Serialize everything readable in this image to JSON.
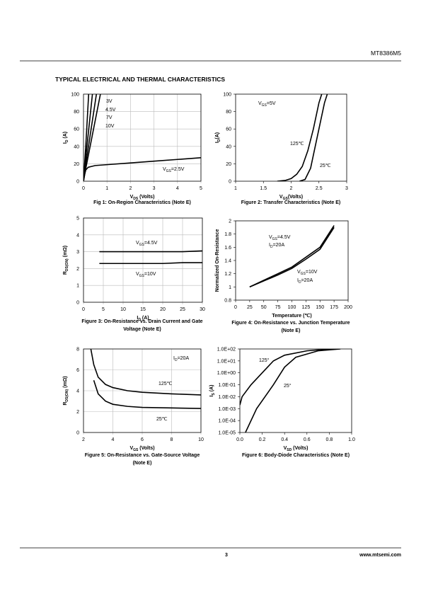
{
  "header": {
    "part_number": "MT8386M5",
    "section_title": "TYPICAL ELECTRICAL AND THERMAL CHARACTERISTICS"
  },
  "footer": {
    "page": "3",
    "website": "www.mtsemi.com"
  },
  "chart_data": [
    {
      "type": "line",
      "caption": [
        "Fig 1: On-Region Characteristics (Note E)"
      ],
      "xlabel": [
        "V",
        "DS",
        " (Volts)"
      ],
      "ylabel": [
        "I",
        "D",
        " (A)"
      ],
      "xlim": [
        0,
        5
      ],
      "xticks": [
        0,
        1,
        2,
        3,
        4,
        5
      ],
      "ylim": [
        0,
        100
      ],
      "yticks": [
        0,
        20,
        40,
        60,
        80,
        100
      ],
      "grid": true,
      "series": [
        {
          "color": "#000000",
          "x": [
            0,
            0.1,
            0.22
          ],
          "values": [
            0,
            42,
            100
          ]
        },
        {
          "color": "#000000",
          "x": [
            0,
            0.1,
            0.38
          ],
          "values": [
            0,
            28,
            100
          ]
        },
        {
          "color": "#000000",
          "x": [
            0,
            0.1,
            0.55
          ],
          "values": [
            0,
            20,
            100
          ]
        },
        {
          "color": "#000000",
          "x": [
            0,
            0.1,
            0.72
          ],
          "values": [
            0,
            15,
            100
          ]
        },
        {
          "color": "#000000",
          "x": [
            0,
            0.05,
            0.1,
            0.2,
            0.5,
            1,
            2,
            3,
            4,
            5
          ],
          "values": [
            0,
            8,
            13,
            16,
            18,
            19,
            21,
            23,
            25,
            27
          ]
        }
      ],
      "annotations": [
        [
          "3V"
        ],
        [
          "4.5V"
        ],
        [
          "7V"
        ],
        [
          "10V"
        ],
        [
          "V",
          "GS",
          "=2.5V"
        ]
      ]
    },
    {
      "type": "line",
      "caption": [
        "Figure 2: Transfer Characteristics (Note E)"
      ],
      "xlabel": [
        "V",
        "GS",
        "(Volts)"
      ],
      "ylabel": [
        "I",
        "D",
        "(A)"
      ],
      "xlim": [
        1,
        3
      ],
      "xticks": [
        1,
        1.5,
        2,
        2.5,
        3
      ],
      "ylim": [
        0,
        100
      ],
      "yticks": [
        0,
        20,
        40,
        60,
        80,
        100
      ],
      "grid": false,
      "series": [
        {
          "color": "#000000",
          "x": [
            1.75,
            1.9,
            2.0,
            2.1,
            2.2,
            2.3,
            2.4,
            2.5,
            2.55
          ],
          "values": [
            0,
            1,
            3,
            8,
            17,
            35,
            60,
            90,
            100
          ]
        },
        {
          "color": "#000000",
          "x": [
            2.15,
            2.25,
            2.35,
            2.4,
            2.5,
            2.6,
            2.65
          ],
          "values": [
            0,
            2,
            15,
            30,
            60,
            90,
            100
          ]
        }
      ],
      "annotations": [
        [
          "V",
          "GS",
          "=5V"
        ],
        [
          "125℃"
        ],
        [
          "25℃"
        ]
      ]
    },
    {
      "type": "line",
      "caption": [
        "Figure 3: On-Resistance vs. Drain Current and Gate",
        "Voltage (Note E)"
      ],
      "xlabel": [
        "I",
        "D",
        " (A)"
      ],
      "ylabel": [
        "R",
        "DS(ON)",
        " (mΩ)"
      ],
      "xlim": [
        0,
        30
      ],
      "xticks": [
        0,
        5,
        10,
        15,
        20,
        25,
        30
      ],
      "ylim": [
        0,
        5
      ],
      "yticks": [
        0,
        1,
        2,
        3,
        4,
        5
      ],
      "grid": true,
      "series": [
        {
          "color": "#000000",
          "x": [
            4,
            10,
            15,
            20,
            25,
            30
          ],
          "values": [
            3.0,
            3.0,
            3.0,
            3.0,
            3.0,
            3.05
          ]
        },
        {
          "color": "#000000",
          "x": [
            4,
            10,
            15,
            20,
            25,
            30
          ],
          "values": [
            2.3,
            2.3,
            2.3,
            2.3,
            2.35,
            2.35
          ]
        }
      ],
      "annotations": [
        [
          "V",
          "GS",
          "=4.5V"
        ],
        [
          "V",
          "GS",
          "=10V"
        ]
      ]
    },
    {
      "type": "line",
      "caption": [
        "Figure 4: On-Resistance vs. Junction Temperature",
        "(Note E)"
      ],
      "xlabel": [
        "Temperature (℃)"
      ],
      "ylabel": [
        "Normalized On-Resistance"
      ],
      "xlim": [
        0,
        200
      ],
      "xticks": [
        0,
        25,
        50,
        75,
        100,
        125,
        150,
        175,
        200
      ],
      "ylim": [
        0.8,
        2
      ],
      "yticks": [
        0.8,
        1,
        1.2,
        1.4,
        1.6,
        1.8,
        2
      ],
      "grid": false,
      "series": [
        {
          "color": "#000000",
          "x": [
            25,
            50,
            75,
            100,
            125,
            150,
            175
          ],
          "values": [
            1,
            1.1,
            1.2,
            1.3,
            1.45,
            1.6,
            1.93
          ]
        },
        {
          "color": "#000000",
          "x": [
            25,
            50,
            75,
            100,
            125,
            150,
            175
          ],
          "values": [
            1,
            1.09,
            1.18,
            1.28,
            1.42,
            1.57,
            1.9
          ]
        }
      ],
      "annotations": [
        [
          "V",
          "GS",
          "=4.5V"
        ],
        [
          "I",
          "D",
          "=20A"
        ],
        [
          "V",
          "GS",
          "=10V"
        ],
        [
          "I",
          "D",
          "=20A"
        ]
      ]
    },
    {
      "type": "line",
      "caption": [
        "Figure 5: On-Resistance vs. Gate-Source Voltage",
        "(Note E)"
      ],
      "xlabel": [
        "V",
        "GS",
        " (Volts)"
      ],
      "ylabel": [
        "R",
        "DS(ON)",
        " (mΩ)"
      ],
      "xlim": [
        2,
        10
      ],
      "xticks": [
        2,
        4,
        6,
        8,
        10
      ],
      "ylim": [
        0,
        8
      ],
      "yticks": [
        0,
        2,
        4,
        6,
        8
      ],
      "grid": true,
      "series": [
        {
          "color": "#000000",
          "x": [
            2.5,
            2.7,
            3,
            3.5,
            4,
            5,
            6,
            8,
            10
          ],
          "values": [
            8,
            6.5,
            5.3,
            4.6,
            4.3,
            4.0,
            3.85,
            3.7,
            3.6
          ]
        },
        {
          "color": "#000000",
          "x": [
            2.7,
            3,
            3.5,
            4,
            5,
            6,
            8,
            10
          ],
          "values": [
            5,
            3.7,
            3,
            2.7,
            2.5,
            2.4,
            2.35,
            2.3
          ]
        }
      ],
      "annotations": [
        [
          "I",
          "D",
          "=20A"
        ],
        [
          "125℃"
        ],
        [
          "25℃"
        ]
      ]
    },
    {
      "type": "line",
      "log_y": true,
      "caption": [
        "Figure 6: Body-Diode Characteristics (Note E)"
      ],
      "xlabel": [
        "V",
        "SD",
        " (Volts)"
      ],
      "ylabel": [
        "I",
        "S",
        " (A)"
      ],
      "xlim": [
        0,
        1
      ],
      "xticks": [
        {
          "value": 0,
          "label": "0.0"
        },
        0.2,
        0.4,
        0.6,
        0.8,
        {
          "value": 1,
          "label": "1.0"
        }
      ],
      "ylim": [
        1e-05,
        100
      ],
      "yticks": [
        {
          "value": 1e-05,
          "label": "1.0E-05"
        },
        {
          "value": 0.0001,
          "label": "1.0E-04"
        },
        {
          "value": 0.001,
          "label": "1.0E-03"
        },
        {
          "value": 0.01,
          "label": "1.0E-02"
        },
        {
          "value": 0.1,
          "label": "1.0E-01"
        },
        {
          "value": 1,
          "label": "1.0E+00"
        },
        {
          "value": 10,
          "label": "1.0E+01"
        },
        {
          "value": 100,
          "label": "1.0E+02"
        }
      ],
      "grid": false,
      "series": [
        {
          "color": "#000000",
          "x": [
            0,
            0.02,
            0.1,
            0.2,
            0.3,
            0.4,
            0.6,
            0.8
          ],
          "values": [
            0.002,
            0.01,
            0.1,
            1,
            10,
            30,
            70,
            100
          ]
        },
        {
          "color": "#000000",
          "x": [
            0.05,
            0.15,
            0.3,
            0.4,
            0.5,
            0.7,
            0.9
          ],
          "values": [
            1e-05,
            0.001,
            0.1,
            3,
            20,
            70,
            100
          ]
        }
      ],
      "annotations": [
        [
          "125°"
        ],
        [
          "25°"
        ]
      ]
    }
  ]
}
